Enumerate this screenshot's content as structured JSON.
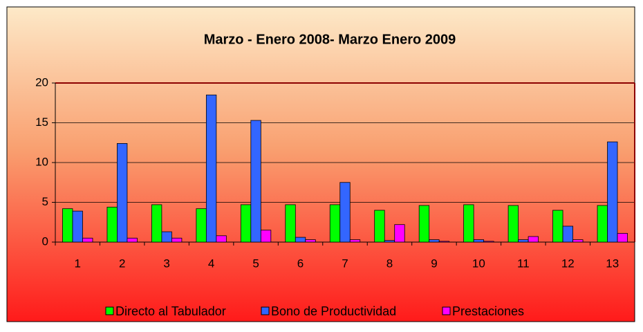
{
  "chart_data": {
    "type": "bar",
    "title": "Marzo - Enero 2008- Marzo Enero 2009",
    "categories": [
      "1",
      "2",
      "3",
      "4",
      "5",
      "6",
      "7",
      "8",
      "9",
      "10",
      "11",
      "12",
      "13"
    ],
    "series": [
      {
        "name": "Directo al Tabulador",
        "color": "#00ff00",
        "values": [
          4.2,
          4.4,
          4.7,
          4.2,
          4.7,
          4.7,
          4.7,
          4.0,
          4.6,
          4.7,
          4.6,
          4.0,
          4.6
        ]
      },
      {
        "name": "Bono de Productividad",
        "color": "#3366ff",
        "values": [
          3.9,
          12.4,
          1.3,
          18.5,
          15.3,
          0.6,
          7.5,
          0.2,
          0.3,
          0.3,
          0.3,
          2.0,
          12.6
        ]
      },
      {
        "name": "Prestaciones",
        "color": "#ff00ff",
        "values": [
          0.5,
          0.5,
          0.5,
          0.8,
          1.5,
          0.3,
          0.3,
          2.2,
          0.1,
          0.1,
          0.7,
          0.3,
          1.1
        ]
      }
    ],
    "ylim": [
      0,
      20
    ],
    "yticks": [
      0,
      5,
      10,
      15,
      20
    ],
    "grid": true,
    "legend": "bottom"
  }
}
